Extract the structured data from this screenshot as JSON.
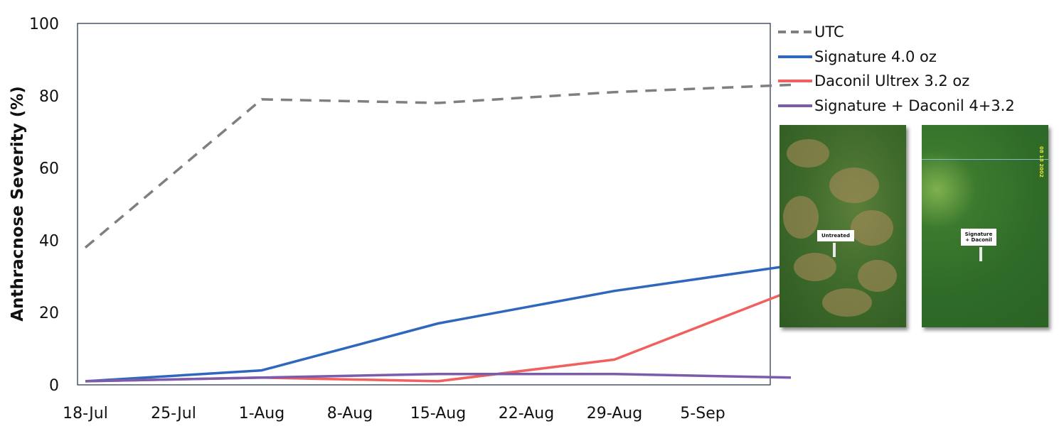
{
  "chart_data": {
    "type": "line",
    "title": "",
    "xlabel": "",
    "ylabel": "Anthracnose Severity (%)",
    "ylim": [
      0,
      100
    ],
    "yticks": [
      0,
      20,
      40,
      60,
      80,
      100
    ],
    "xticks": [
      "18-Jul",
      "25-Jul",
      "1-Aug",
      "8-Aug",
      "15-Aug",
      "22-Aug",
      "29-Aug",
      "5-Sep"
    ],
    "x": [
      "18-Jul",
      "1-Aug",
      "15-Aug",
      "29-Aug",
      "12-Sep"
    ],
    "legend_position": "right",
    "grid": false,
    "series": [
      {
        "name": "UTC",
        "color": "#7f7f7f",
        "dash": "dashed",
        "values": [
          38,
          79,
          78,
          81,
          83
        ]
      },
      {
        "name": "Signature 4.0 oz",
        "color": "#2e67bd",
        "dash": "solid",
        "values": [
          1,
          4,
          17,
          26,
          33
        ]
      },
      {
        "name": "Daconil Ultrex 3.2 oz",
        "color": "#f0605f",
        "dash": "solid",
        "values": [
          1,
          2,
          1,
          7,
          26
        ]
      },
      {
        "name": "Signature + Daconil 4+3.2",
        "color": "#7b5cac",
        "dash": "solid",
        "values": [
          1,
          2,
          3,
          3,
          2
        ]
      }
    ]
  },
  "photos": [
    {
      "sign": "Untreated"
    },
    {
      "sign": "Signature + Daconil",
      "stamp": "08 18 2002"
    }
  ]
}
